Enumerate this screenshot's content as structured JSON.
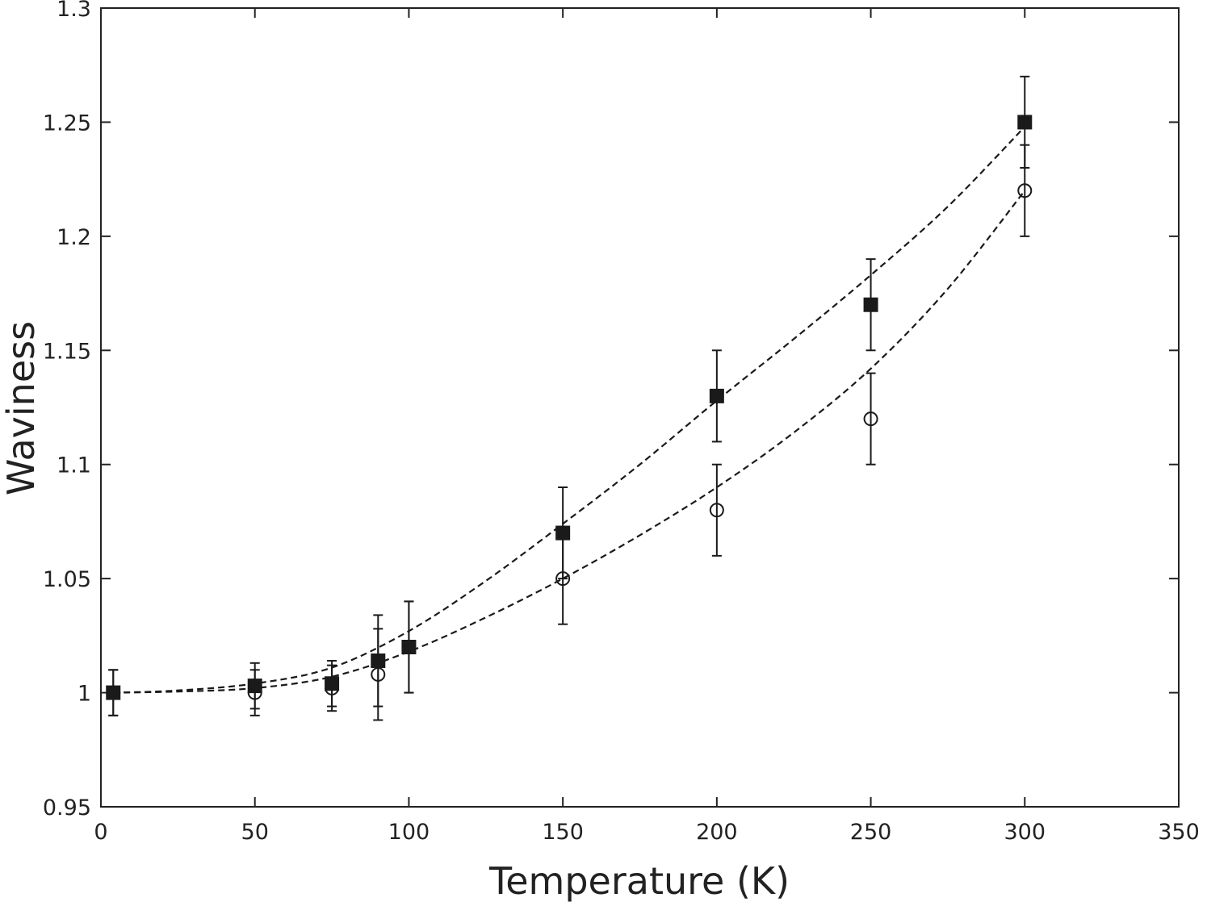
{
  "chart_data": {
    "type": "scatter",
    "xlabel": "Temperature (K)",
    "ylabel": "Waviness",
    "xlim": [
      0,
      350
    ],
    "ylim": [
      0.95,
      1.3
    ],
    "xticks": [
      0,
      50,
      100,
      150,
      200,
      250,
      300,
      350
    ],
    "xtick_labels": [
      "0",
      "50",
      "100",
      "150",
      "200",
      "250",
      "300",
      "350"
    ],
    "yticks": [
      0.95,
      1,
      1.05,
      1.1,
      1.15,
      1.2,
      1.25,
      1.3
    ],
    "ytick_labels": [
      "0.95",
      "1",
      "1.05",
      "1.1",
      "1.15",
      "1.2",
      "1.25",
      "1.3"
    ],
    "grid": false,
    "legend": "none",
    "series": [
      {
        "marker": "filled-square",
        "color": "#1a1a1a",
        "x": [
          4,
          50,
          75,
          90,
          100,
          150,
          200,
          250,
          300
        ],
        "y": [
          1.0,
          1.003,
          1.004,
          1.014,
          1.02,
          1.07,
          1.13,
          1.17,
          1.25
        ],
        "err": [
          0.01,
          0.01,
          0.01,
          0.02,
          0.02,
          0.02,
          0.02,
          0.02,
          0.02
        ],
        "fit": {
          "style": "dashed",
          "x": [
            4,
            25,
            50,
            75,
            100,
            125,
            150,
            175,
            200,
            225,
            250,
            275,
            300
          ],
          "y": [
            1.0,
            1.001,
            1.004,
            1.011,
            1.027,
            1.049,
            1.074,
            1.1,
            1.128,
            1.155,
            1.183,
            1.213,
            1.248
          ]
        }
      },
      {
        "marker": "open-circle",
        "color": "#1a1a1a",
        "x": [
          4,
          50,
          75,
          90,
          100,
          150,
          200,
          250,
          300
        ],
        "y": [
          1.0,
          1.0,
          1.002,
          1.008,
          1.02,
          1.05,
          1.08,
          1.12,
          1.22
        ],
        "err": [
          0.01,
          0.01,
          0.01,
          0.02,
          0.02,
          0.02,
          0.02,
          0.02,
          0.02
        ],
        "fit": {
          "style": "dashed",
          "x": [
            4,
            25,
            50,
            75,
            100,
            125,
            150,
            175,
            200,
            225,
            250,
            275,
            300
          ],
          "y": [
            1.0,
            1.0005,
            1.002,
            1.007,
            1.018,
            1.033,
            1.05,
            1.069,
            1.09,
            1.114,
            1.142,
            1.177,
            1.22
          ]
        }
      }
    ]
  }
}
